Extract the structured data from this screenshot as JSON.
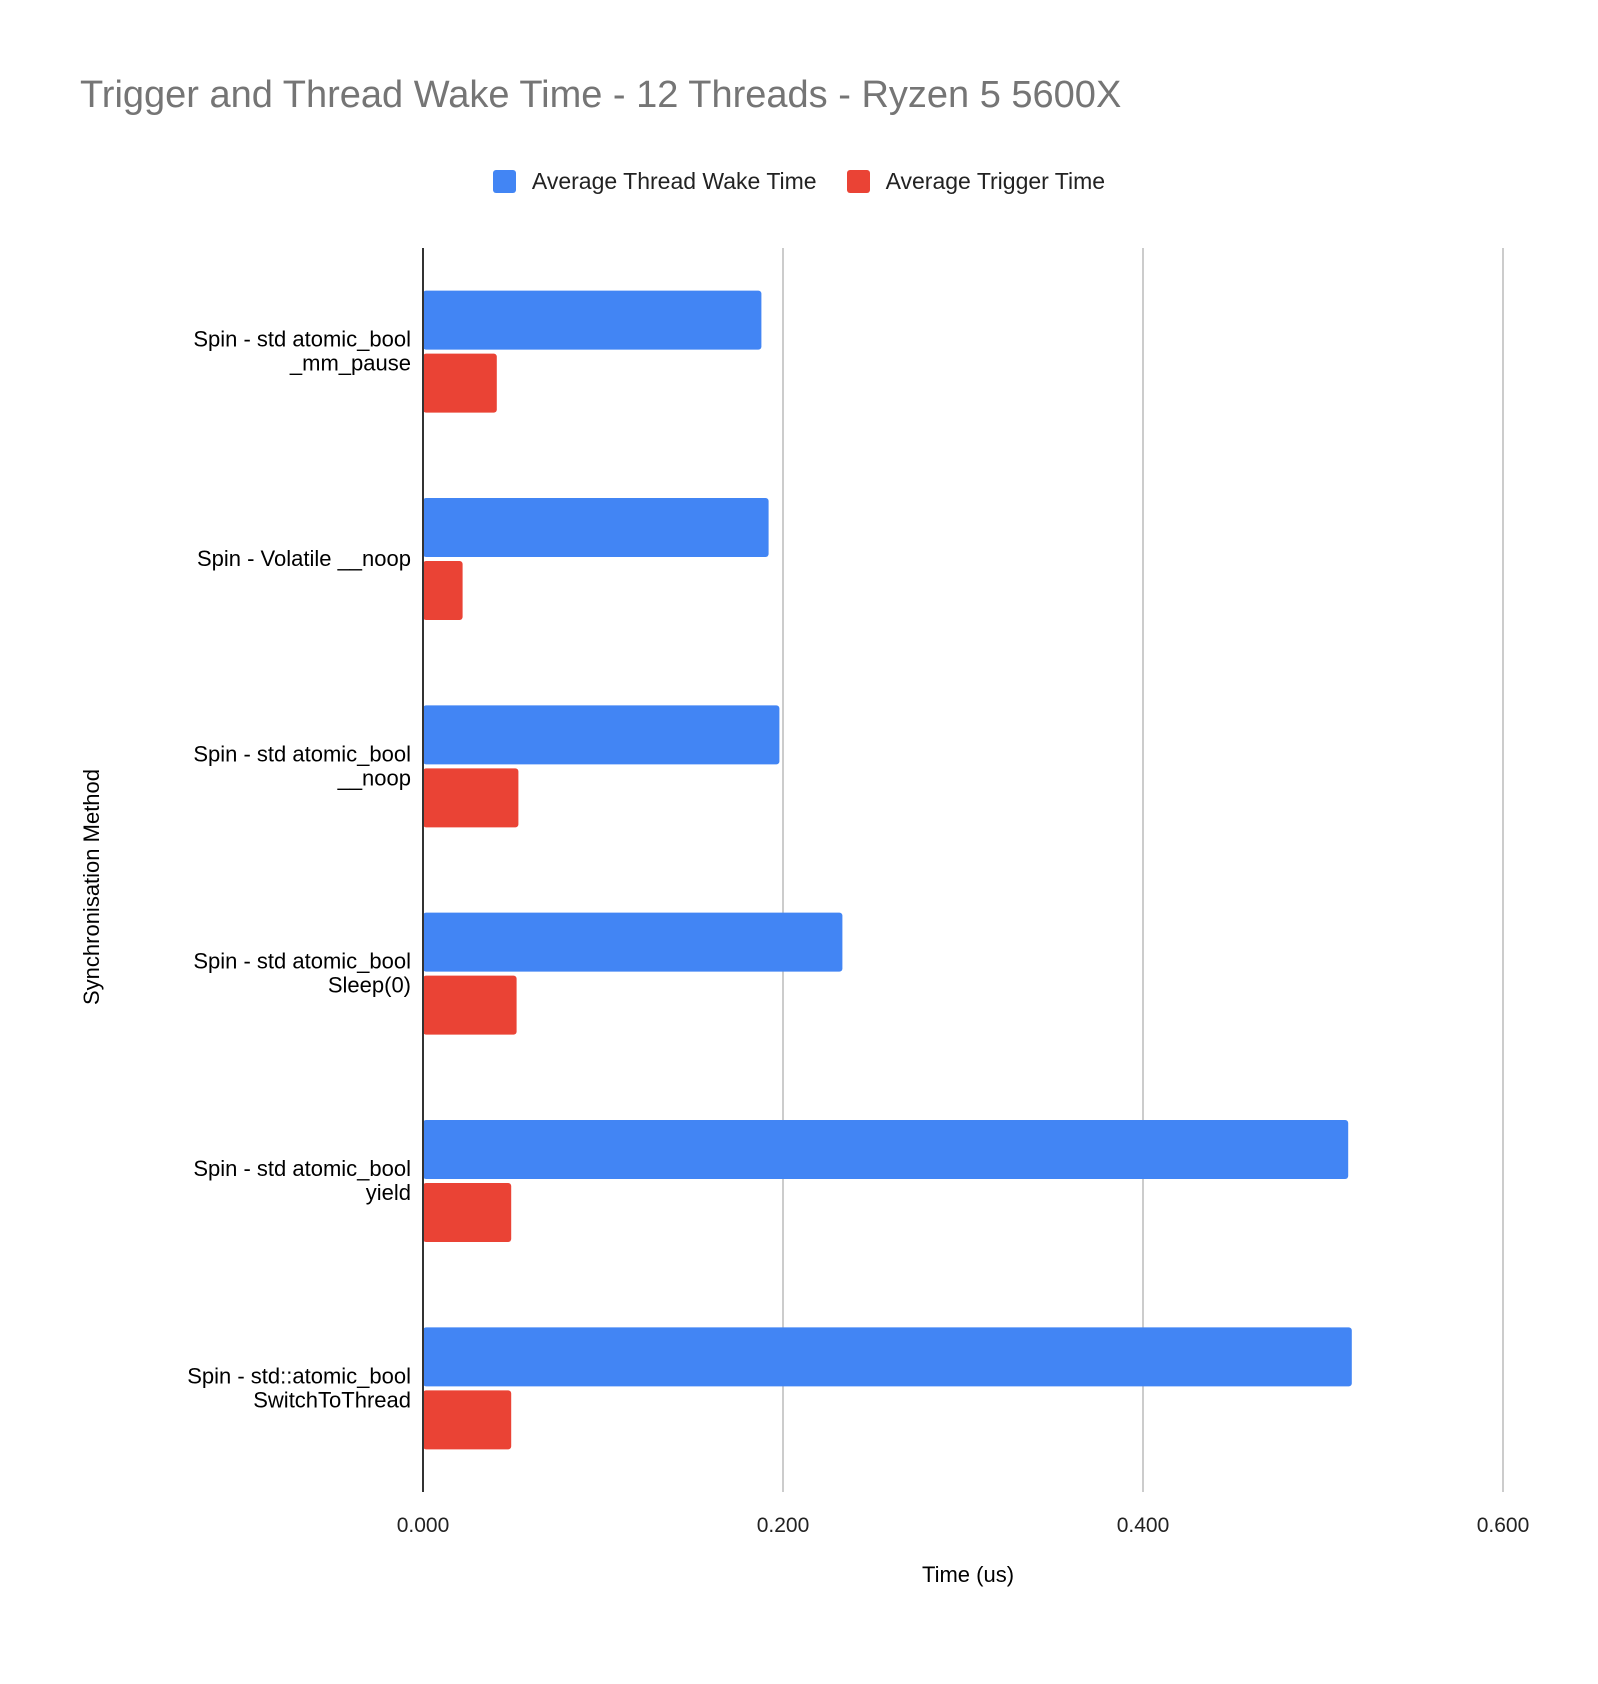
{
  "chart_data": {
    "type": "bar",
    "orientation": "horizontal",
    "title": "Trigger and Thread Wake Time - 12 Threads - Ryzen 5 5600X",
    "xlabel": "Time (us)",
    "ylabel": "Synchronisation Method",
    "xlim": [
      0,
      0.6
    ],
    "xticks": [
      "0.000",
      "0.200",
      "0.400",
      "0.600"
    ],
    "grid": true,
    "legend_position": "top",
    "categories": [
      [
        "Spin - std atomic_bool",
        "_mm_pause"
      ],
      [
        "Spin - Volatile __noop"
      ],
      [
        "Spin - std atomic_bool",
        "__noop"
      ],
      [
        "Spin - std atomic_bool",
        "Sleep(0)"
      ],
      [
        "Spin - std atomic_bool",
        "yield"
      ],
      [
        "Spin - std::atomic_bool",
        "SwitchToThread"
      ]
    ],
    "series": [
      {
        "name": "Average Thread Wake Time",
        "color": "#4285f4",
        "values": [
          0.188,
          0.192,
          0.198,
          0.233,
          0.514,
          0.516
        ]
      },
      {
        "name": "Average Trigger Time",
        "color": "#ea4335",
        "values": [
          0.041,
          0.022,
          0.053,
          0.052,
          0.049,
          0.049
        ]
      }
    ]
  }
}
